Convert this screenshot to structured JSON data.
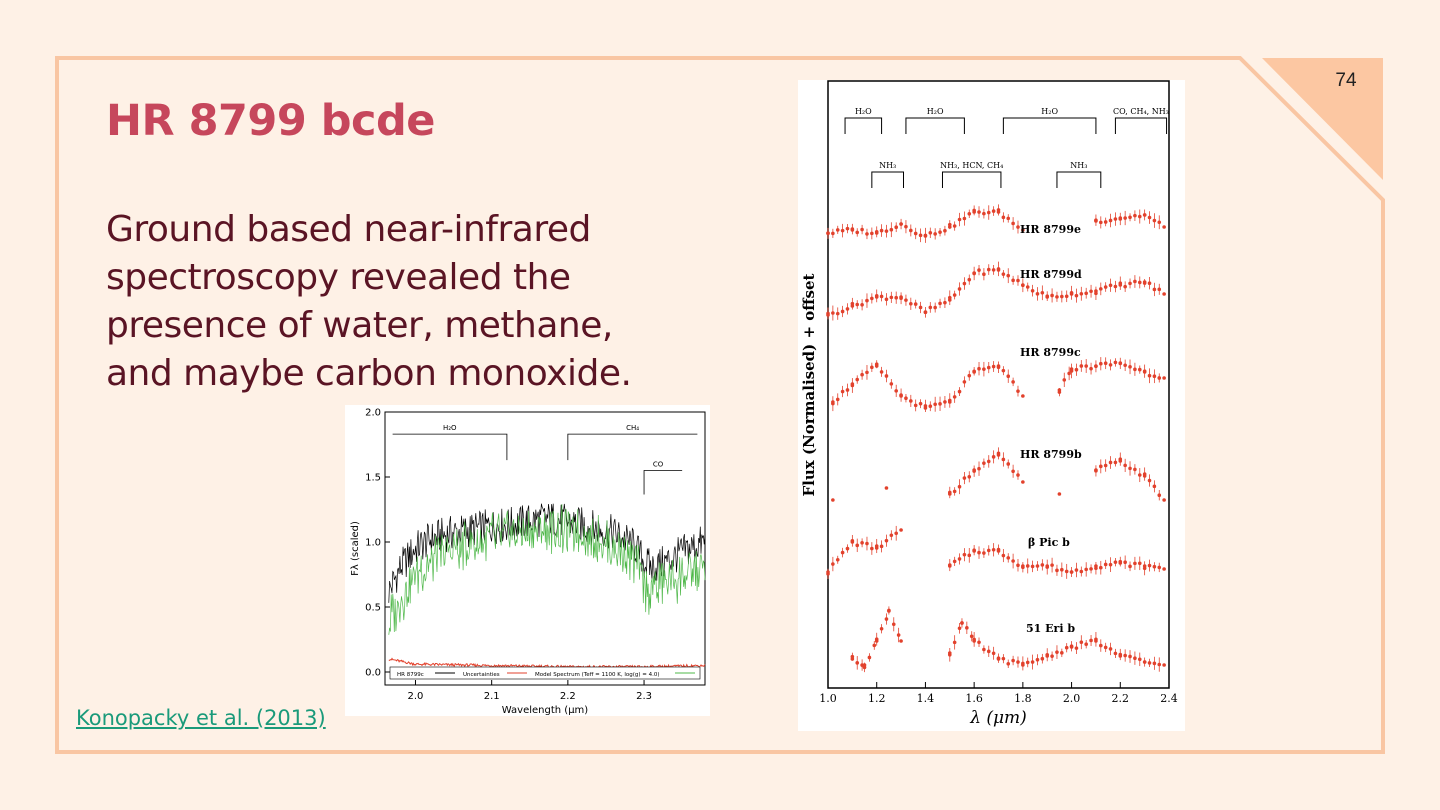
{
  "slide": {
    "page_number": "74",
    "title": "HR 8799 bcde",
    "body": "Ground based near-infrared spectroscopy revealed the presence of water, methane, and maybe carbon monoxide.",
    "citation": "Konopacky et al. (2013)"
  },
  "colors": {
    "background": "#fef1e6",
    "frame": "#f9c6a3",
    "title": "#c6475c",
    "body": "#5a1424",
    "link": "#1a9a7a",
    "spectrum_red": "#e2412c"
  },
  "chart_data": [
    {
      "type": "line",
      "xlabel": "Wavelength (μm)",
      "ylabel": "Fλ (scaled)",
      "xlim": [
        1.96,
        2.38
      ],
      "ylim": [
        -0.1,
        2.0
      ],
      "x_ticks": [
        "2.0",
        "2.1",
        "2.2",
        "2.3"
      ],
      "y_ticks": [
        "0.0",
        "0.5",
        "1.0",
        "1.5",
        "2.0"
      ],
      "annotations": [
        {
          "label": "H₂O",
          "x_start": 1.97,
          "x_end": 2.12
        },
        {
          "label": "CH₄",
          "x_start": 2.2,
          "x_end": 2.37
        },
        {
          "label": "CO",
          "x_start": 2.3,
          "x_end": 2.35
        }
      ],
      "legend": [
        "HR 8799c",
        "Uncertainties",
        "Model Spectrum (Teff = 1100 K, log(g) = 4.0)"
      ],
      "series": [
        {
          "name": "HR 8799c",
          "color": "#000000",
          "x": [
            1.965,
            1.98,
            2.0,
            2.02,
            2.04,
            2.06,
            2.08,
            2.1,
            2.12,
            2.14,
            2.16,
            2.18,
            2.2,
            2.22,
            2.24,
            2.26,
            2.28,
            2.29,
            2.3,
            2.31,
            2.33,
            2.35,
            2.37,
            2.38
          ],
          "y": [
            0.62,
            0.8,
            0.95,
            1.02,
            1.06,
            1.08,
            1.1,
            1.12,
            1.13,
            1.15,
            1.17,
            1.18,
            1.15,
            1.13,
            1.1,
            1.07,
            1.0,
            0.95,
            0.85,
            0.8,
            0.85,
            0.92,
            0.98,
            1.0
          ]
        },
        {
          "name": "Uncertainties",
          "color": "#e2412c",
          "x": [
            1.965,
            2.0,
            2.1,
            2.2,
            2.3,
            2.38
          ],
          "y": [
            0.1,
            0.06,
            0.05,
            0.04,
            0.04,
            0.05
          ]
        },
        {
          "name": "Model Spectrum (Teff = 1100 K, log(g) = 4.0)",
          "color": "#4fb84a",
          "x": [
            1.965,
            1.98,
            2.0,
            2.02,
            2.04,
            2.06,
            2.08,
            2.1,
            2.12,
            2.14,
            2.16,
            2.18,
            2.2,
            2.22,
            2.24,
            2.26,
            2.28,
            2.29,
            2.3,
            2.31,
            2.33,
            2.35,
            2.37,
            2.38
          ],
          "y": [
            0.45,
            0.62,
            0.8,
            0.92,
            1.0,
            1.03,
            1.06,
            1.1,
            1.12,
            1.13,
            1.15,
            1.15,
            1.14,
            1.12,
            1.08,
            1.02,
            0.95,
            0.9,
            0.72,
            0.7,
            0.75,
            0.8,
            0.82,
            0.85
          ]
        }
      ]
    },
    {
      "type": "scatter",
      "xlabel": "λ (μm)",
      "ylabel": "Flux (Normalised) + offset",
      "xlim": [
        1.0,
        2.4
      ],
      "x_ticks": [
        "1.0",
        "1.2",
        "1.4",
        "1.6",
        "1.8",
        "2.0",
        "2.2",
        "2.4"
      ],
      "band_labels": [
        {
          "label": "H₂O",
          "x_start": 1.07,
          "x_end": 1.22,
          "row": 1
        },
        {
          "label": "H₂O",
          "x_start": 1.32,
          "x_end": 1.56,
          "row": 1
        },
        {
          "label": "H₂O",
          "x_start": 1.72,
          "x_end": 2.1,
          "row": 1
        },
        {
          "label": "CO, CH₄, NH₃",
          "x_start": 2.18,
          "x_end": 2.39,
          "row": 1
        },
        {
          "label": "NH₃",
          "x_start": 1.18,
          "x_end": 1.31,
          "row": 2
        },
        {
          "label": "NH₃, HCN, CH₄",
          "x_start": 1.47,
          "x_end": 1.71,
          "row": 2
        },
        {
          "label": "NH₃",
          "x_start": 1.94,
          "x_end": 2.12,
          "row": 2
        }
      ],
      "series": [
        {
          "name": "HR 8799e",
          "offset": 5,
          "x": [
            1.0,
            1.1,
            1.2,
            1.3,
            1.4,
            1.5,
            1.6,
            1.7,
            1.8,
            2.1,
            2.2,
            2.3,
            2.38
          ],
          "y": [
            0.0,
            0.05,
            0.0,
            0.15,
            -0.05,
            0.1,
            0.35,
            0.35,
            0.05,
            0.2,
            0.25,
            0.3,
            0.1
          ]
        },
        {
          "name": "HR 8799d",
          "offset": 4,
          "x": [
            1.0,
            1.1,
            1.2,
            1.3,
            1.4,
            1.5,
            1.6,
            1.7,
            1.8,
            1.9,
            2.0,
            2.1,
            2.2,
            2.3,
            2.38
          ],
          "y": [
            0.0,
            0.15,
            0.3,
            0.3,
            0.05,
            0.25,
            0.7,
            0.75,
            0.5,
            0.3,
            0.35,
            0.4,
            0.5,
            0.55,
            0.35
          ]
        },
        {
          "name": "HR 8799c",
          "offset": 3,
          "x": [
            1.02,
            1.1,
            1.2,
            1.3,
            1.4,
            1.5,
            1.6,
            1.7,
            1.8,
            1.95,
            2.0,
            2.1,
            2.2,
            2.3,
            2.38
          ],
          "y": [
            0.0,
            0.3,
            0.6,
            0.1,
            -0.1,
            0.0,
            0.5,
            0.6,
            0.1,
            0.2,
            0.55,
            0.6,
            0.65,
            0.5,
            0.4
          ]
        },
        {
          "name": "HR 8799b",
          "offset": 2,
          "x": [
            1.02,
            1.24,
            1.5,
            1.6,
            1.7,
            1.8,
            1.95,
            2.1,
            2.2,
            2.3,
            2.38
          ],
          "y": [
            0.0,
            0.2,
            0.1,
            0.5,
            0.75,
            0.3,
            0.1,
            0.5,
            0.65,
            0.4,
            0.0
          ]
        },
        {
          "name": "β Pic b",
          "offset": 1,
          "x": [
            1.0,
            1.1,
            1.2,
            1.3,
            1.5,
            1.6,
            1.7,
            1.8,
            1.9,
            2.0,
            2.1,
            2.2,
            2.3,
            2.38
          ],
          "y": [
            0.0,
            0.5,
            0.4,
            0.7,
            0.1,
            0.35,
            0.35,
            0.1,
            0.1,
            0.0,
            0.1,
            0.15,
            0.1,
            0.05
          ]
        },
        {
          "name": "51 Eri b",
          "offset": 0,
          "x": [
            1.1,
            1.15,
            1.2,
            1.25,
            1.3,
            1.5,
            1.55,
            1.6,
            1.7,
            1.8,
            1.9,
            2.0,
            2.1,
            2.2,
            2.3,
            2.38
          ],
          "y": [
            0.1,
            0.0,
            0.4,
            0.9,
            0.4,
            0.2,
            0.7,
            0.4,
            0.1,
            0.0,
            0.15,
            0.3,
            0.4,
            0.15,
            0.05,
            0.0
          ]
        }
      ]
    }
  ]
}
